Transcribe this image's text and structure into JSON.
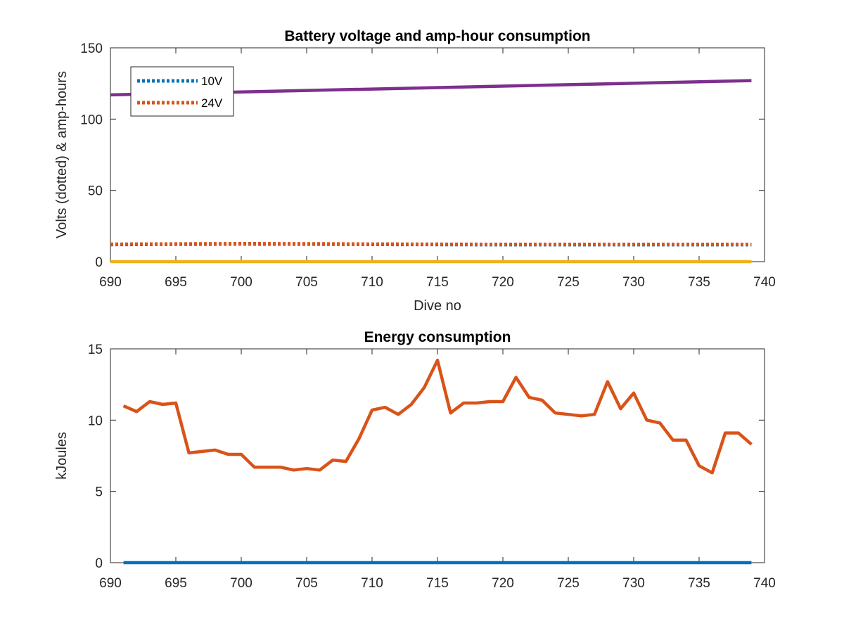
{
  "chart_data": [
    {
      "type": "line",
      "title": "Battery voltage and amp-hour consumption",
      "xlabel": "Dive no",
      "ylabel": "Volts (dotted) & amp-hours",
      "xlim": [
        690,
        740
      ],
      "ylim": [
        0,
        150
      ],
      "xticks": [
        690,
        695,
        700,
        705,
        710,
        715,
        720,
        725,
        730,
        735,
        740
      ],
      "yticks": [
        0,
        50,
        100,
        150
      ],
      "grid": false,
      "legend_position": "top-left",
      "series": [
        {
          "name": "10V",
          "color": "#0072BD",
          "style": "dotted",
          "x": [
            690,
            695,
            700,
            705,
            710,
            715,
            720,
            725,
            730,
            735,
            739
          ],
          "y": [
            12,
            12.2,
            12.4,
            12.3,
            12.1,
            12.0,
            11.9,
            11.9,
            11.9,
            11.9,
            11.9
          ]
        },
        {
          "name": "24V",
          "color": "#D95319",
          "style": "dotted",
          "x": [
            690,
            695,
            700,
            705,
            710,
            715,
            720,
            725,
            730,
            735,
            739
          ],
          "y": [
            12.2,
            12.4,
            12.6,
            12.5,
            12.3,
            12.2,
            12.1,
            12.1,
            12.1,
            12.1,
            12.1
          ]
        },
        {
          "color": "#7E2F8E",
          "style": "solid",
          "x": [
            690,
            739
          ],
          "y": [
            117,
            127
          ]
        },
        {
          "color": "#EDB120",
          "style": "solid",
          "x": [
            690,
            739
          ],
          "y": [
            0,
            0
          ]
        }
      ]
    },
    {
      "type": "line",
      "title": "Energy consumption",
      "xlabel": "",
      "ylabel": "kJoules",
      "xlim": [
        690,
        740
      ],
      "ylim": [
        0,
        15
      ],
      "xticks": [
        690,
        695,
        700,
        705,
        710,
        715,
        720,
        725,
        730,
        735,
        740
      ],
      "yticks": [
        0,
        5,
        10,
        15
      ],
      "grid": false,
      "series": [
        {
          "color": "#0072BD",
          "style": "solid",
          "x": [
            691,
            739
          ],
          "y": [
            0,
            0
          ]
        },
        {
          "color": "#D95319",
          "style": "solid",
          "x": [
            691,
            692,
            693,
            694,
            695,
            696,
            697,
            698,
            699,
            700,
            701,
            702,
            703,
            704,
            705,
            706,
            707,
            708,
            709,
            710,
            711,
            712,
            713,
            714,
            715,
            716,
            717,
            718,
            719,
            720,
            721,
            722,
            723,
            724,
            725,
            726,
            727,
            728,
            729,
            730,
            731,
            732,
            733,
            734,
            735,
            736,
            737,
            738,
            739
          ],
          "y": [
            11.0,
            10.6,
            11.3,
            11.1,
            11.2,
            7.7,
            7.8,
            7.9,
            7.6,
            7.6,
            6.7,
            6.7,
            6.7,
            6.5,
            6.6,
            6.5,
            7.2,
            7.1,
            8.7,
            10.7,
            10.9,
            10.4,
            11.1,
            12.3,
            14.2,
            10.5,
            11.2,
            11.2,
            11.3,
            11.3,
            13.0,
            11.6,
            11.4,
            10.5,
            10.4,
            10.3,
            10.4,
            12.7,
            10.8,
            11.9,
            10.0,
            9.8,
            8.6,
            8.6,
            6.8,
            6.3,
            9.1,
            9.1,
            8.3
          ]
        }
      ]
    }
  ]
}
